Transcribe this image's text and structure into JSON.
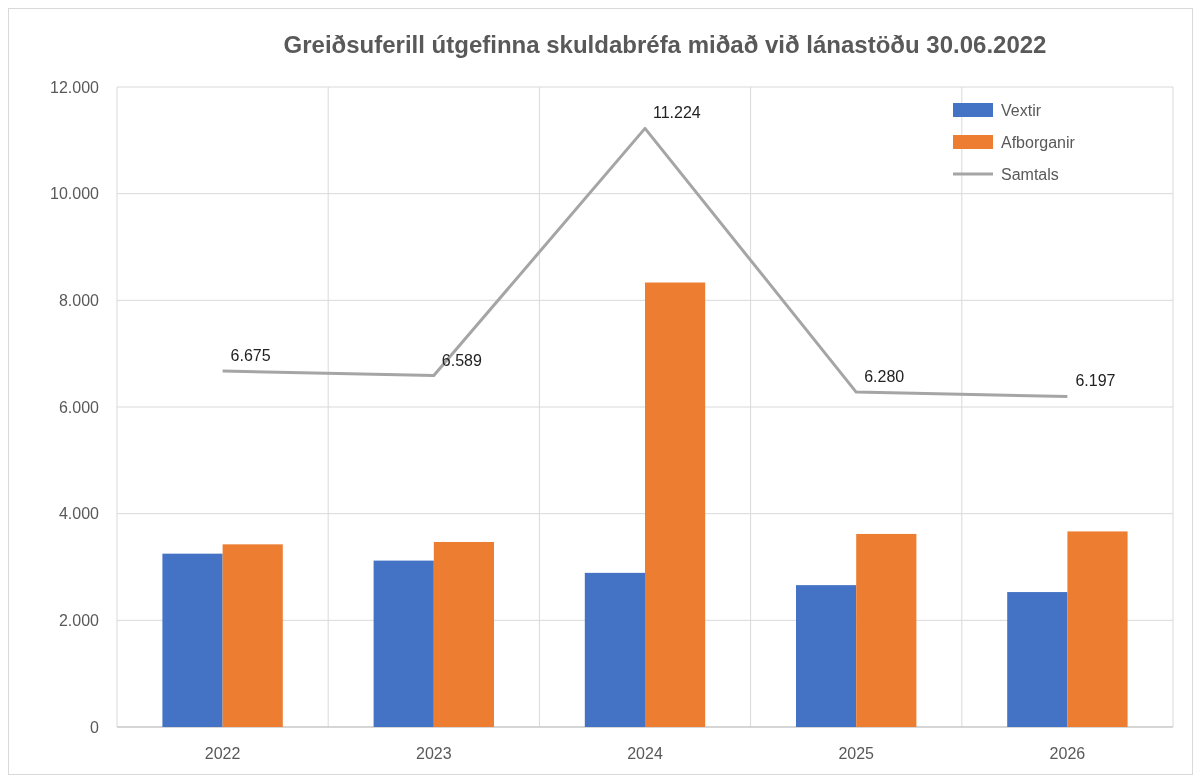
{
  "chart_data": {
    "type": "bar",
    "title": "Greiðsuferill útgefinna skuldabréfa miðað við lánastöðu 30.06.2022",
    "categories": [
      "2022",
      "2023",
      "2024",
      "2025",
      "2026"
    ],
    "series": [
      {
        "name": "Vextir",
        "color": "#4472c4",
        "values": [
          3250,
          3120,
          2890,
          2660,
          2530
        ]
      },
      {
        "name": "Afborganir",
        "color": "#ed7d31",
        "values": [
          3425,
          3469,
          8334,
          3620,
          3667
        ]
      },
      {
        "name": "Samtals",
        "type": "line",
        "color": "#a5a5a5",
        "values": [
          6675,
          6589,
          11224,
          6280,
          6197
        ],
        "value_labels": [
          "6.675",
          "6.589",
          "11.224",
          "6.280",
          "6.197"
        ]
      }
    ],
    "ylim": [
      0,
      12000
    ],
    "yticks": [
      {
        "value": 0,
        "label": "0"
      },
      {
        "value": 2000,
        "label": "2.000"
      },
      {
        "value": 4000,
        "label": "4.000"
      },
      {
        "value": 6000,
        "label": "6.000"
      },
      {
        "value": 8000,
        "label": "8.000"
      },
      {
        "value": 10000,
        "label": "10.000"
      },
      {
        "value": 12000,
        "label": "12.000"
      }
    ],
    "grid": true,
    "legend": "top right"
  }
}
